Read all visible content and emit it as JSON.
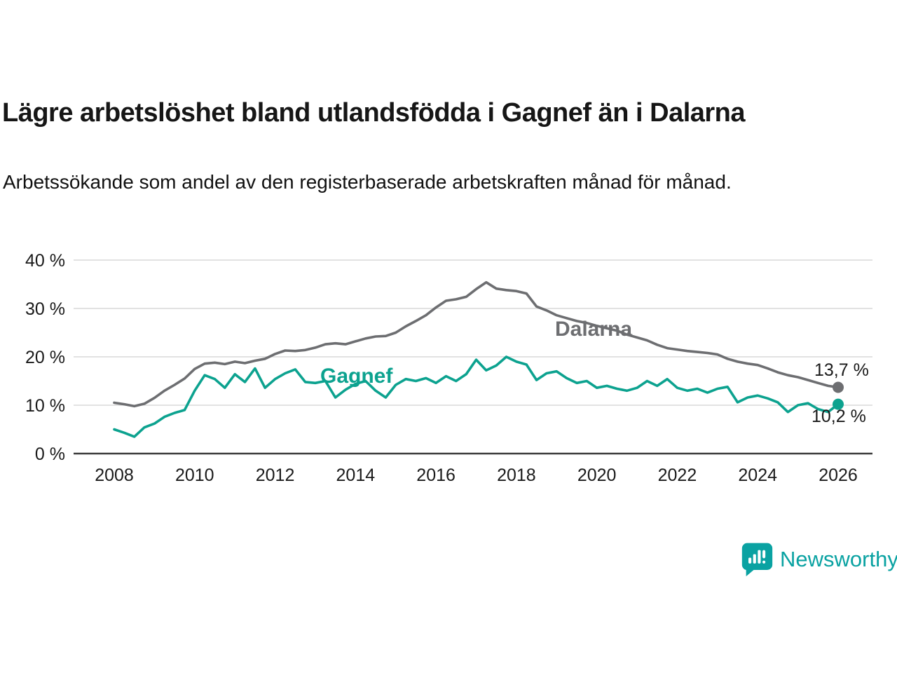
{
  "header": {
    "title": "Lägre arbetslöshet bland utlandsfödda i Gagnef än i Dalarna",
    "subtitle": "Arbetssökande som andel av den registerbaserade arbetskraften månad för månad."
  },
  "chart_data": {
    "type": "line",
    "title": "Lägre arbetslöshet bland utlandsfödda i Gagnef än i Dalarna",
    "subtitle": "Arbetssökande som andel av den registerbaserade arbetskraften månad för månad.",
    "xlim": [
      2008,
      2026
    ],
    "ylim": [
      0,
      40
    ],
    "grid": "horizontal",
    "x_start": 2008,
    "x_step": 0.25,
    "x_axis_ticks": [
      2008,
      2010,
      2012,
      2014,
      2016,
      2018,
      2020,
      2022,
      2024,
      2026
    ],
    "x_tick_labels": [
      "2008",
      "2010",
      "2012",
      "2014",
      "2016",
      "2018",
      "2020",
      "2022",
      "2024",
      "2026"
    ],
    "y_axis_ticks": [
      0,
      10,
      20,
      30,
      40
    ],
    "y_tick_labels": [
      "0 %",
      "10 %",
      "20 %",
      "30 %",
      "40 %"
    ],
    "series": [
      {
        "name": "Dalarna",
        "color": "#6d6e71",
        "end_value": 13.7,
        "end_label": "13,7 %",
        "values": [
          10.5,
          10.2,
          9.8,
          10.3,
          11.5,
          13.0,
          14.2,
          15.5,
          17.5,
          18.6,
          18.8,
          18.5,
          19.0,
          18.7,
          19.2,
          19.6,
          20.6,
          21.3,
          21.2,
          21.4,
          21.9,
          22.6,
          22.8,
          22.6,
          23.2,
          23.8,
          24.2,
          24.3,
          25.0,
          26.3,
          27.4,
          28.6,
          30.2,
          31.6,
          31.9,
          32.4,
          34.0,
          35.4,
          34.1,
          33.8,
          33.6,
          33.1,
          30.4,
          29.6,
          28.6,
          28.0,
          27.4,
          27.0,
          26.4,
          25.9,
          25.4,
          24.6,
          24.0,
          23.4,
          22.5,
          21.8,
          21.5,
          21.2,
          21.0,
          20.8,
          20.5,
          19.6,
          19.0,
          18.6,
          18.3,
          17.6,
          16.8,
          16.2,
          15.8,
          15.2,
          14.6,
          14.0,
          13.7
        ]
      },
      {
        "name": "Gagnef",
        "color": "#0ca28f",
        "end_value": 10.2,
        "end_label": "10,2 %",
        "values": [
          5.0,
          4.3,
          3.5,
          5.4,
          6.2,
          7.6,
          8.4,
          9.0,
          13.0,
          16.2,
          15.4,
          13.6,
          16.4,
          14.8,
          17.6,
          13.6,
          15.4,
          16.6,
          17.4,
          14.8,
          14.6,
          15.0,
          11.6,
          13.2,
          14.4,
          15.0,
          13.0,
          11.6,
          14.2,
          15.4,
          15.0,
          15.6,
          14.6,
          16.0,
          15.0,
          16.4,
          19.4,
          17.2,
          18.2,
          20.0,
          19.0,
          18.4,
          15.2,
          16.6,
          17.0,
          15.6,
          14.6,
          15.0,
          13.6,
          14.0,
          13.4,
          13.0,
          13.6,
          15.0,
          14.0,
          15.4,
          13.6,
          13.0,
          13.4,
          12.6,
          13.4,
          13.8,
          10.6,
          11.6,
          12.0,
          11.4,
          10.6,
          8.6,
          10.0,
          10.4,
          9.2,
          8.6,
          10.2
        ]
      }
    ]
  },
  "annotations": {
    "dalarna_series_label": "Dalarna",
    "gagnef_series_label": "Gagnef",
    "dalarna_end_label": "13,7 %",
    "gagnef_end_label": "10,2 %"
  },
  "footer": {
    "brand": "Newsworthy"
  },
  "colors": {
    "dalarna_line": "#6d6e71",
    "gagnef_line": "#0ca28f",
    "brand_teal": "#0aa2a2",
    "gridline": "#d9d9d9",
    "axis_line": "#3c3c3c",
    "text": "#1a1a1a"
  }
}
